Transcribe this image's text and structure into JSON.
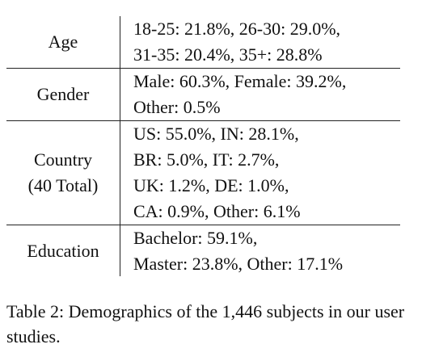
{
  "table": {
    "rows": [
      {
        "label": [
          "Age"
        ],
        "lines": [
          "18-25: 21.8%, 26-30: 29.0%,",
          "31-35: 20.4%, 35+: 28.8%"
        ]
      },
      {
        "label": [
          "Gender"
        ],
        "lines": [
          "Male: 60.3%, Female: 39.2%,",
          "Other: 0.5%"
        ]
      },
      {
        "label": [
          "Country",
          "(40 Total)"
        ],
        "lines": [
          "US: 55.0%, IN: 28.1%,",
          "BR: 5.0%, IT: 2.7%,",
          "UK: 1.2%, DE: 1.0%,",
          "CA: 0.9%, Other: 6.1%"
        ]
      },
      {
        "label": [
          "Education"
        ],
        "lines": [
          "Bachelor: 59.1%,",
          "Master: 23.8%, Other: 17.1%"
        ]
      }
    ]
  },
  "caption": {
    "label": "Table 2:",
    "text": "Demographics of the 1,446 subjects in our user studies."
  }
}
